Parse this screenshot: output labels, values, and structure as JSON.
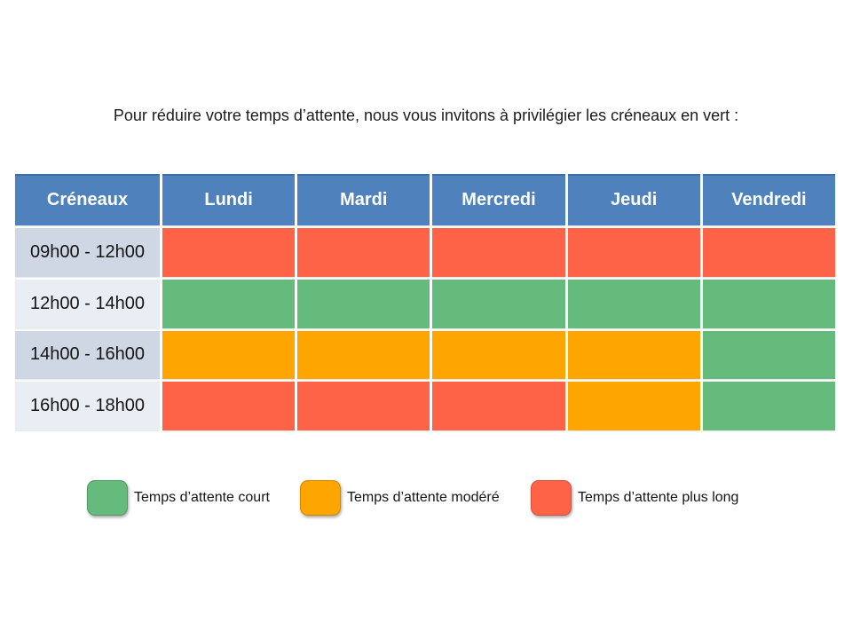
{
  "slide": {
    "title": "Pour réduire votre temps d’attente, nous vous invitons à privilégier les créneaux en vert :"
  },
  "table": {
    "headers": [
      "Créneaux",
      "Lundi",
      "Mardi",
      "Mercredi",
      "Jeudi",
      "Vendredi"
    ],
    "rows": [
      {
        "label": "09h00 - 12h00",
        "cells": [
          "long",
          "long",
          "long",
          "long",
          "long"
        ]
      },
      {
        "label": "12h00 - 14h00",
        "cells": [
          "court",
          "court",
          "court",
          "court",
          "court"
        ]
      },
      {
        "label": "14h00 - 16h00",
        "cells": [
          "modere",
          "modere",
          "modere",
          "modere",
          "court"
        ]
      },
      {
        "label": "16h00 - 18h00",
        "cells": [
          "long",
          "long",
          "long",
          "modere",
          "court"
        ]
      }
    ]
  },
  "legend": {
    "items": [
      {
        "key": "court",
        "label": "Temps d’attente court"
      },
      {
        "key": "modere",
        "label": "Temps d’attente modéré"
      },
      {
        "key": "long",
        "label": "Temps d’attente plus long"
      }
    ]
  },
  "colors": {
    "header_bg": "#4f81bd",
    "header_text": "#ffffff",
    "row_band_dark": "#cfd6e4",
    "row_band_light": "#e9edf4",
    "court": "#64bb7c",
    "modere": "#ffa500",
    "long": "#ff6347"
  }
}
